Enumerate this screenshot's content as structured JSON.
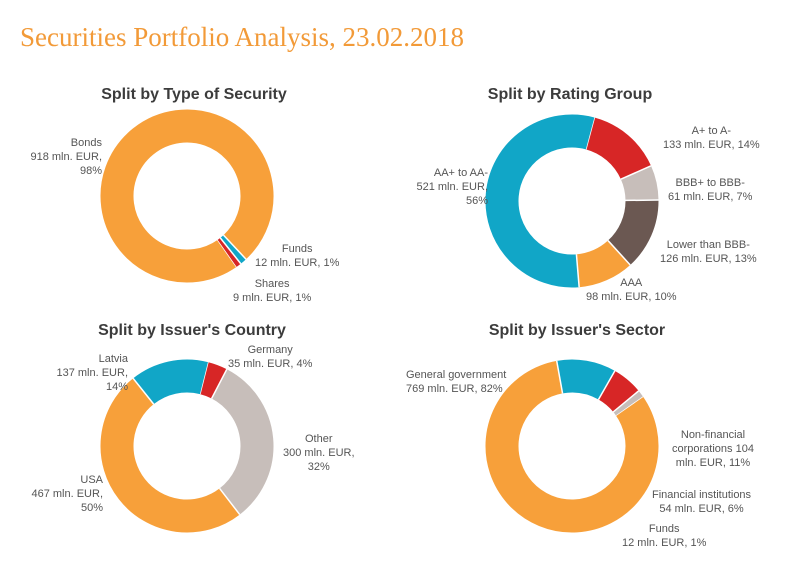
{
  "page": {
    "title": "Securities Portfolio Analysis, 23.02.2018"
  },
  "chart_data": [
    {
      "type": "pie",
      "title": "Split by  Type of Security",
      "slices": [
        {
          "name": "Bonds",
          "value": 918,
          "share": 98,
          "amount": "918 mln. EUR,",
          "pct": "98%",
          "color": "#f7a03a"
        },
        {
          "name": "Funds",
          "value": 12,
          "share": 1,
          "amount": "12 mln. EUR, 1%",
          "color": "#11a6c7"
        },
        {
          "name": "Shares",
          "value": 9,
          "share": 1,
          "amount": "9 mln. EUR, 1%",
          "color": "#d72626"
        }
      ]
    },
    {
      "type": "pie",
      "title": "Split by Rating Group",
      "slices": [
        {
          "name": "A+ to A-",
          "value": 133,
          "share": 14,
          "amount": "133 mln. EUR,  14%",
          "color": "#d72626"
        },
        {
          "name": "BBB+ to BBB-",
          "value": 61,
          "share": 7,
          "amount": "61 mln. EUR, 7%",
          "color": "#c7beba"
        },
        {
          "name": "Lower than BBB-",
          "value": 126,
          "share": 13,
          "amount": "126 mln. EUR, 13%",
          "color": "#6b5852"
        },
        {
          "name": "AAA",
          "value": 98,
          "share": 10,
          "amount": "98 mln. EUR, 10%",
          "color": "#f7a03a"
        },
        {
          "name": "AA+ to AA-",
          "value": 521,
          "share": 56,
          "amount": "521 mln. EUR,",
          "pct": "56%",
          "color": "#11a6c7"
        }
      ]
    },
    {
      "type": "pie",
      "title": "Split by Issuer's Country",
      "slices": [
        {
          "name": "Germany",
          "value": 35,
          "share": 4,
          "amount": "35 mln. EUR, 4%",
          "color": "#d72626"
        },
        {
          "name": "Other",
          "value": 300,
          "share": 32,
          "amount": "300 mln. EUR,",
          "pct": "32%",
          "color": "#c7beba"
        },
        {
          "name": "USA",
          "value": 467,
          "share": 50,
          "amount": "467 mln. EUR,",
          "pct": "50%",
          "color": "#f7a03a"
        },
        {
          "name": "Latvia",
          "value": 137,
          "share": 14,
          "amount": "137 mln. EUR,",
          "pct": "14%",
          "color": "#11a6c7"
        }
      ]
    },
    {
      "type": "pie",
      "title": "Split by Issuer's Sector",
      "slices": [
        {
          "name": "General government",
          "value": 769,
          "share": 82,
          "amount": "769 mln. EUR, 82%",
          "color": "#f7a03a"
        },
        {
          "name": "Non-financial",
          "name2": "corporations 104",
          "value": 104,
          "share": 11,
          "amount": "mln. EUR, 11%",
          "color": "#11a6c7"
        },
        {
          "name": "Financial institutions",
          "value": 54,
          "share": 6,
          "amount": "54 mln. EUR, 6%",
          "color": "#d72626"
        },
        {
          "name": "Funds",
          "value": 12,
          "share": 1,
          "amount": "12 mln. EUR, 1%",
          "color": "#c7beba"
        }
      ]
    }
  ]
}
